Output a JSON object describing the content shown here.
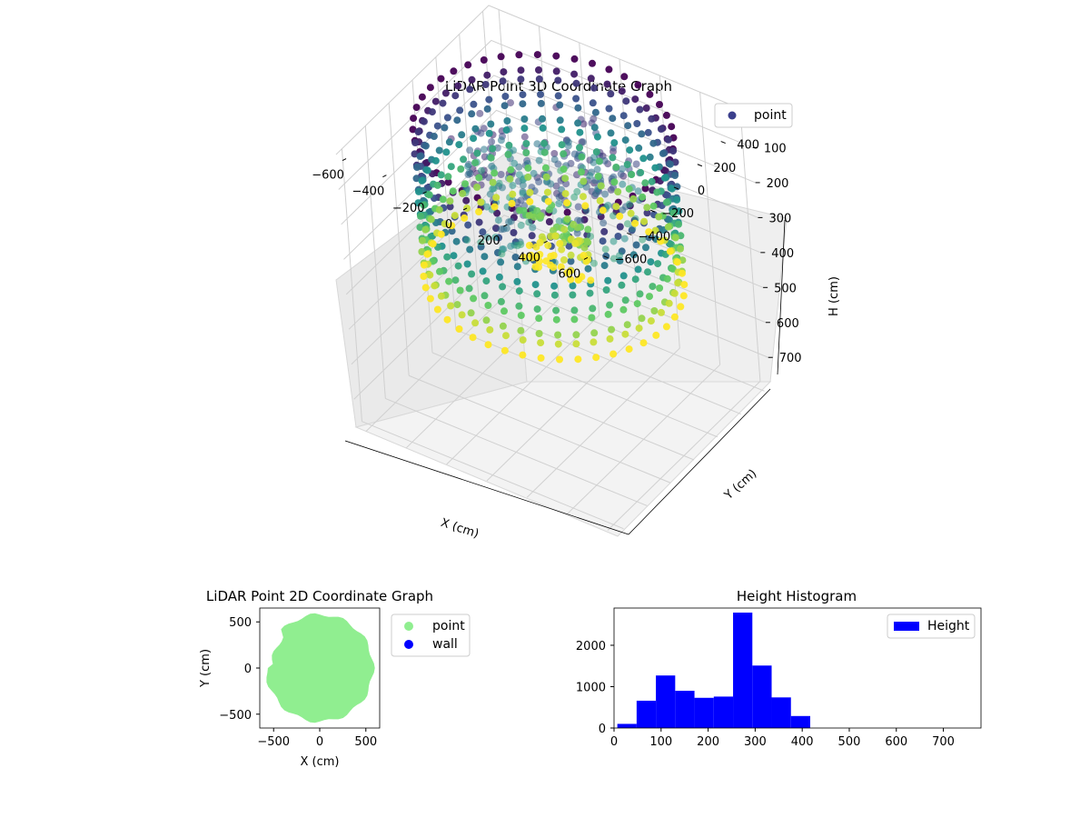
{
  "chart_data": [
    {
      "type": "scatter",
      "projection": "3d",
      "title": "LiDAR Point 3D Coordinate Graph",
      "xlabel": "X (cm)",
      "ylabel": "Y (cm)",
      "zlabel": "H (cm)",
      "xlim": [
        -650,
        650
      ],
      "ylim": [
        -650,
        650
      ],
      "zlim": [
        0,
        780
      ],
      "z_axis_inverted": true,
      "xticks": [
        "−600",
        "−400",
        "−200",
        "0",
        "200",
        "400",
        "600"
      ],
      "yticks": [
        "−600",
        "−400",
        "−200",
        "0",
        "200",
        "400",
        "600"
      ],
      "zticks": [
        "0",
        "100",
        "200",
        "300",
        "400",
        "500",
        "600",
        "700"
      ],
      "colormap": "viridis",
      "grid": true,
      "legend": {
        "placement": "upper-right",
        "entries": [
          {
            "label": "point",
            "color": "#3b3f8c"
          }
        ]
      },
      "series": [
        {
          "name": "point",
          "description_of_shape": "ring of wall points",
          "wall_radius": 560,
          "wall_height_range": [
            0,
            420
          ],
          "floor_radius_range": [
            0,
            420
          ],
          "floor_height": 0
        }
      ]
    },
    {
      "type": "scatter",
      "title": "LiDAR Point 2D Coordinate Graph",
      "xlabel": "X (cm)",
      "ylabel": "Y (cm)",
      "xlim": [
        -650,
        650
      ],
      "ylim": [
        -650,
        650
      ],
      "xticks": [
        "−500",
        "0",
        "500"
      ],
      "yticks": [
        "500",
        "0",
        "−500"
      ],
      "legend": {
        "placement": "outside-right",
        "entries": [
          {
            "label": "point",
            "color": "#90ee90"
          },
          {
            "label": "wall",
            "color": "#0000ff"
          }
        ]
      },
      "series": [
        {
          "name": "point",
          "color": "#90ee90",
          "disk_radius": 580
        },
        {
          "name": "wall",
          "color": "#0000ff",
          "values": []
        }
      ]
    },
    {
      "type": "bar",
      "subtype": "histogram",
      "title": "Height Histogram",
      "xlabel": "",
      "ylabel": "",
      "xlim": [
        0,
        780
      ],
      "ylim": [
        0,
        2900
      ],
      "xticks": [
        "0",
        "100",
        "200",
        "300",
        "400",
        "500",
        "600",
        "700"
      ],
      "yticks": [
        "0",
        "1000",
        "2000"
      ],
      "legend": {
        "placement": "upper-right",
        "entries": [
          {
            "label": "Height",
            "color": "#0000ff"
          }
        ]
      },
      "series": [
        {
          "name": "Height",
          "color": "#0000ff",
          "bin_edges": [
            7,
            48,
            89,
            130,
            171,
            212,
            253,
            294,
            335,
            376,
            417,
            458,
            499,
            540,
            581,
            622,
            663,
            704,
            745
          ],
          "values": [
            100,
            660,
            1270,
            900,
            730,
            760,
            2790,
            1510,
            740,
            290,
            0,
            0,
            0,
            0,
            0,
            0,
            0,
            0
          ]
        }
      ]
    }
  ]
}
